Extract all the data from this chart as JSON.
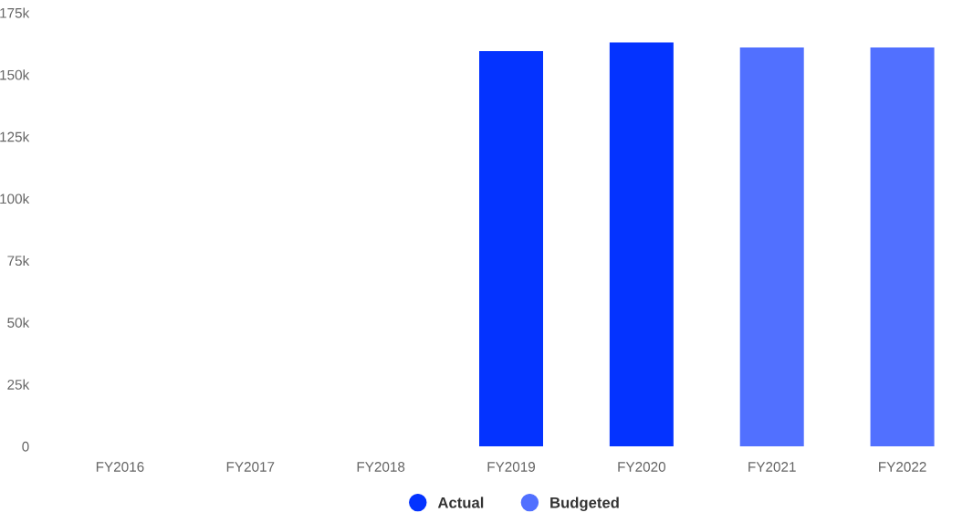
{
  "chart_data": {
    "type": "bar",
    "categories": [
      "FY2016",
      "FY2017",
      "FY2018",
      "FY2019",
      "FY2020",
      "FY2021",
      "FY2022"
    ],
    "series": [
      {
        "name": "Actual",
        "color": "#0433ff",
        "values": [
          null,
          null,
          null,
          159500,
          163000,
          null,
          null
        ]
      },
      {
        "name": "Budgeted",
        "color": "#5170ff",
        "values": [
          null,
          null,
          null,
          null,
          null,
          161000,
          161000
        ]
      }
    ],
    "ylim": [
      0,
      175000
    ],
    "yticks": [
      {
        "value": 0,
        "label": "0"
      },
      {
        "value": 25000,
        "label": "25k"
      },
      {
        "value": 50000,
        "label": "50k"
      },
      {
        "value": 75000,
        "label": "75k"
      },
      {
        "value": 100000,
        "label": "100k"
      },
      {
        "value": 125000,
        "label": "125k"
      },
      {
        "value": 150000,
        "label": "150k"
      },
      {
        "value": 175000,
        "label": "175k"
      }
    ],
    "grid": false,
    "legend": "bottom"
  }
}
